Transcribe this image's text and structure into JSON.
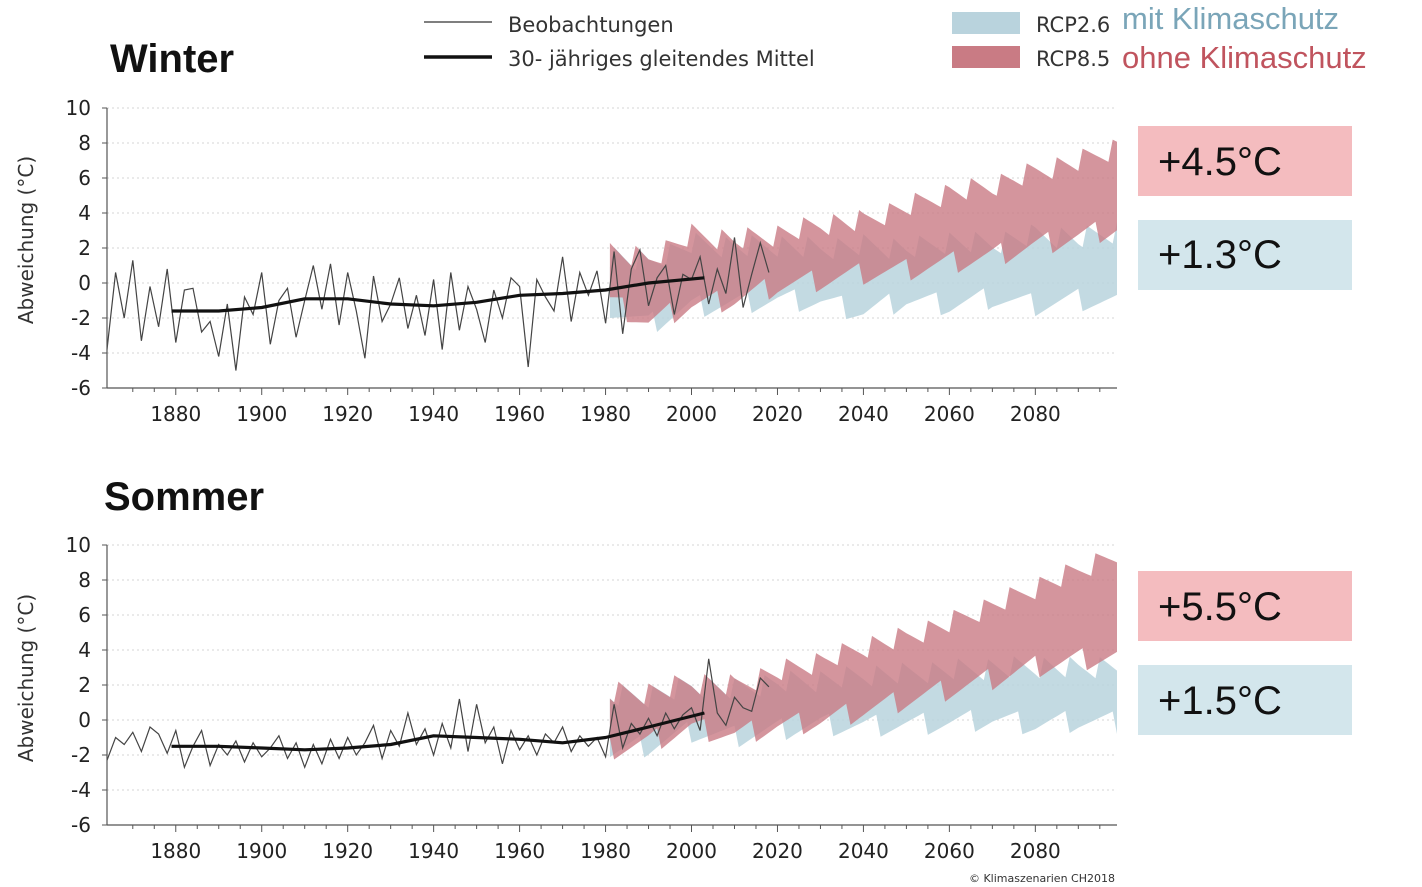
{
  "legend": {
    "observations": "Beobachtungen",
    "mean": "30- jähriges gleitendes Mittel",
    "rcp26": "RCP2.6",
    "rcp85": "RCP8.5",
    "rcp26_desc": "mit Klimaschutz",
    "rcp85_desc": "ohne Klimaschutz"
  },
  "colors": {
    "rcp26": "#b9d3dd",
    "rcp85": "#c97b84",
    "rcp26_text": "#7aa5b8",
    "rcp85_text": "#c0545e",
    "box_high": "#f4bcbf",
    "box_low": "#d3e6ec"
  },
  "copyright": "© Klimaszenarien CH2018",
  "chart_data": [
    {
      "type": "area",
      "title": "Winter",
      "ylabel": "Abweichung (°C)",
      "xlim": [
        1864,
        2099
      ],
      "ylim": [
        -6,
        10
      ],
      "xticks": [
        1880,
        1900,
        1920,
        1940,
        1960,
        1980,
        2000,
        2020,
        2040,
        2060,
        2080
      ],
      "yticks": [
        "10",
        "8",
        "6",
        "4",
        "2",
        "0",
        "-2",
        "-4",
        "-6"
      ],
      "yticks_values": [
        10,
        8,
        6,
        4,
        2,
        0,
        -2,
        -4,
        -6
      ],
      "observations": {
        "years": [
          1864,
          1866,
          1868,
          1870,
          1872,
          1874,
          1876,
          1878,
          1880,
          1882,
          1884,
          1886,
          1888,
          1890,
          1892,
          1894,
          1896,
          1898,
          1900,
          1902,
          1904,
          1906,
          1908,
          1910,
          1912,
          1914,
          1916,
          1918,
          1920,
          1922,
          1924,
          1926,
          1928,
          1930,
          1932,
          1934,
          1936,
          1938,
          1940,
          1942,
          1944,
          1946,
          1948,
          1950,
          1952,
          1954,
          1956,
          1958,
          1960,
          1962,
          1964,
          1966,
          1968,
          1970,
          1972,
          1974,
          1976,
          1978,
          1980,
          1982,
          1984,
          1986,
          1988,
          1990,
          1992,
          1994,
          1996,
          1998,
          2000,
          2002,
          2004,
          2006,
          2008,
          2010,
          2012,
          2014,
          2016,
          2018
        ],
        "values": [
          -3.8,
          0.6,
          -2.0,
          1.3,
          -3.3,
          -0.2,
          -2.5,
          0.8,
          -3.4,
          -0.4,
          -0.3,
          -2.8,
          -2.2,
          -4.2,
          -1.2,
          -5.0,
          -0.8,
          -1.8,
          0.6,
          -3.5,
          -1.0,
          -0.3,
          -3.1,
          -1.0,
          1.0,
          -1.5,
          1.1,
          -2.4,
          0.6,
          -1.6,
          -4.3,
          0.4,
          -2.2,
          -1.2,
          0.3,
          -2.6,
          -0.7,
          -3.0,
          0.2,
          -3.8,
          0.6,
          -2.7,
          -0.2,
          -1.5,
          -3.4,
          -0.4,
          -2.0,
          0.3,
          -0.2,
          -4.8,
          0.2,
          -0.8,
          -1.6,
          1.5,
          -2.2,
          0.6,
          -0.7,
          0.7,
          -2.3,
          1.8,
          -2.9,
          0.8,
          1.9,
          -1.3,
          0.3,
          1.0,
          -1.8,
          0.5,
          0.2,
          1.5,
          -1.2,
          0.8,
          -0.6,
          2.6,
          -1.4,
          0.5,
          2.3,
          0.6
        ]
      },
      "mean": {
        "years": [
          1879,
          1890,
          1900,
          1910,
          1920,
          1930,
          1940,
          1950,
          1960,
          1970,
          1980,
          1990,
          2003
        ],
        "values": [
          -1.6,
          -1.6,
          -1.4,
          -0.9,
          -0.9,
          -1.2,
          -1.3,
          -1.1,
          -0.7,
          -0.6,
          -0.4,
          0.0,
          0.3
        ]
      },
      "bands": [
        {
          "name": "RCP8.5",
          "lower": [
            [
              1981,
              -1.0
            ],
            [
              1990,
              -2.2
            ],
            [
              2000,
              -1.2
            ],
            [
              2010,
              -0.9
            ],
            [
              2020,
              -0.1
            ],
            [
              2030,
              0.2
            ],
            [
              2040,
              0.6
            ],
            [
              2050,
              0.8
            ],
            [
              2060,
              1.2
            ],
            [
              2070,
              1.6
            ],
            [
              2080,
              2.2
            ],
            [
              2090,
              2.7
            ],
            [
              2099,
              3.2
            ]
          ],
          "upper": [
            [
              1981,
              1.8
            ],
            [
              1990,
              1.4
            ],
            [
              2000,
              2.8
            ],
            [
              2010,
              2.5
            ],
            [
              2020,
              2.8
            ],
            [
              2030,
              3.4
            ],
            [
              2040,
              3.6
            ],
            [
              2050,
              4.4
            ],
            [
              2060,
              5.2
            ],
            [
              2070,
              5.6
            ],
            [
              2080,
              6.4
            ],
            [
              2090,
              7.0
            ],
            [
              2099,
              7.8
            ]
          ]
        },
        {
          "name": "RCP2.6",
          "lower": [
            [
              1981,
              -1.3
            ],
            [
              1990,
              -2.3
            ],
            [
              2000,
              -1.3
            ],
            [
              2010,
              -1.1
            ],
            [
              2020,
              -0.9
            ],
            [
              2030,
              -1.0
            ],
            [
              2040,
              -1.6
            ],
            [
              2050,
              -0.9
            ],
            [
              2060,
              -1.2
            ],
            [
              2070,
              -0.8
            ],
            [
              2080,
              -1.2
            ],
            [
              2090,
              -0.9
            ],
            [
              2099,
              -1.0
            ]
          ],
          "upper": [
            [
              1981,
              1.6
            ],
            [
              1990,
              1.2
            ],
            [
              2000,
              2.3
            ],
            [
              2010,
              2.1
            ],
            [
              2020,
              2.2
            ],
            [
              2030,
              2.0
            ],
            [
              2040,
              2.2
            ],
            [
              2050,
              2.0
            ],
            [
              2060,
              2.4
            ],
            [
              2070,
              2.3
            ],
            [
              2080,
              2.8
            ],
            [
              2090,
              2.6
            ],
            [
              2099,
              3.0
            ]
          ]
        }
      ],
      "change_rcp85": "+4.5°C",
      "change_rcp26": "+1.3°C"
    },
    {
      "type": "area",
      "title": "Sommer",
      "ylabel": "Abweichung (°C)",
      "xlim": [
        1864,
        2099
      ],
      "ylim": [
        -6,
        10
      ],
      "xticks": [
        1880,
        1900,
        1920,
        1940,
        1960,
        1980,
        2000,
        2020,
        2040,
        2060,
        2080
      ],
      "yticks": [
        "10",
        "8",
        "6",
        "4",
        "2",
        "0",
        "-2",
        "-4",
        "-6"
      ],
      "yticks_values": [
        10,
        8,
        6,
        4,
        2,
        0,
        -2,
        -4,
        -6
      ],
      "observations": {
        "years": [
          1864,
          1866,
          1868,
          1870,
          1872,
          1874,
          1876,
          1878,
          1880,
          1882,
          1884,
          1886,
          1888,
          1890,
          1892,
          1894,
          1896,
          1898,
          1900,
          1902,
          1904,
          1906,
          1908,
          1910,
          1912,
          1914,
          1916,
          1918,
          1920,
          1922,
          1924,
          1926,
          1928,
          1930,
          1932,
          1934,
          1936,
          1938,
          1940,
          1942,
          1944,
          1946,
          1948,
          1950,
          1952,
          1954,
          1956,
          1958,
          1960,
          1962,
          1964,
          1966,
          1968,
          1970,
          1972,
          1974,
          1976,
          1978,
          1980,
          1982,
          1984,
          1986,
          1988,
          1990,
          1992,
          1994,
          1996,
          1998,
          2000,
          2002,
          2004,
          2006,
          2008,
          2010,
          2012,
          2014,
          2016,
          2018
        ],
        "values": [
          -2.3,
          -1.0,
          -1.4,
          -0.7,
          -1.8,
          -0.4,
          -0.8,
          -1.9,
          -0.6,
          -2.7,
          -1.5,
          -0.6,
          -2.6,
          -1.4,
          -2.0,
          -1.2,
          -2.4,
          -1.3,
          -2.1,
          -1.6,
          -0.9,
          -2.2,
          -1.3,
          -2.7,
          -1.4,
          -2.5,
          -1.1,
          -2.2,
          -1.0,
          -2.0,
          -1.3,
          -0.3,
          -2.2,
          -0.6,
          -1.5,
          0.4,
          -1.4,
          -0.5,
          -2.0,
          -0.2,
          -1.6,
          1.2,
          -1.8,
          0.9,
          -1.3,
          -0.4,
          -2.5,
          -0.6,
          -1.7,
          -0.9,
          -2.0,
          -0.8,
          -1.3,
          -0.4,
          -1.8,
          -0.9,
          -1.5,
          -1.0,
          -2.1,
          0.9,
          -1.6,
          -0.2,
          -0.8,
          0.1,
          -0.9,
          0.4,
          -0.5,
          0.3,
          0.7,
          -0.6,
          3.5,
          0.4,
          -0.3,
          1.3,
          0.7,
          0.5,
          2.4,
          1.9
        ]
      },
      "mean": {
        "years": [
          1879,
          1890,
          1900,
          1910,
          1920,
          1930,
          1940,
          1950,
          1960,
          1970,
          1980,
          1990,
          2003
        ],
        "values": [
          -1.5,
          -1.5,
          -1.6,
          -1.7,
          -1.6,
          -1.4,
          -0.9,
          -1.0,
          -1.1,
          -1.3,
          -1.0,
          -0.4,
          0.4
        ]
      },
      "bands": [
        {
          "name": "RCP8.5",
          "lower": [
            [
              1981,
              -1.6
            ],
            [
              1990,
              -1.2
            ],
            [
              2000,
              -0.4
            ],
            [
              2010,
              -0.8
            ],
            [
              2020,
              -0.3
            ],
            [
              2030,
              0.0
            ],
            [
              2040,
              0.6
            ],
            [
              2050,
              1.2
            ],
            [
              2060,
              1.8
            ],
            [
              2070,
              2.4
            ],
            [
              2080,
              3.1
            ],
            [
              2090,
              3.5
            ],
            [
              2099,
              3.7
            ]
          ],
          "upper": [
            [
              1981,
              1.6
            ],
            [
              1990,
              1.6
            ],
            [
              2000,
              2.2
            ],
            [
              2010,
              2.0
            ],
            [
              2020,
              2.8
            ],
            [
              2030,
              3.4
            ],
            [
              2040,
              4.2
            ],
            [
              2050,
              4.8
            ],
            [
              2060,
              5.6
            ],
            [
              2070,
              6.6
            ],
            [
              2080,
              7.6
            ],
            [
              2090,
              8.6
            ],
            [
              2099,
              9.6
            ]
          ]
        },
        {
          "name": "RCP2.6",
          "lower": [
            [
              1981,
              -1.8
            ],
            [
              1990,
              -1.4
            ],
            [
              2000,
              -0.6
            ],
            [
              2010,
              -0.9
            ],
            [
              2020,
              -0.5
            ],
            [
              2030,
              -0.2
            ],
            [
              2040,
              -0.3
            ],
            [
              2050,
              -0.2
            ],
            [
              2060,
              -0.1
            ],
            [
              2070,
              0.1
            ],
            [
              2080,
              -0.2
            ],
            [
              2090,
              0.0
            ],
            [
              2099,
              -0.1
            ]
          ],
          "upper": [
            [
              1981,
              1.4
            ],
            [
              1990,
              1.4
            ],
            [
              2000,
              2.0
            ],
            [
              2010,
              1.8
            ],
            [
              2020,
              2.2
            ],
            [
              2030,
              2.3
            ],
            [
              2040,
              2.6
            ],
            [
              2050,
              2.7
            ],
            [
              2060,
              2.9
            ],
            [
              2070,
              3.0
            ],
            [
              2080,
              3.1
            ],
            [
              2090,
              3.0
            ],
            [
              2099,
              3.2
            ]
          ]
        }
      ],
      "change_rcp85": "+5.5°C",
      "change_rcp26": "+1.5°C"
    }
  ]
}
